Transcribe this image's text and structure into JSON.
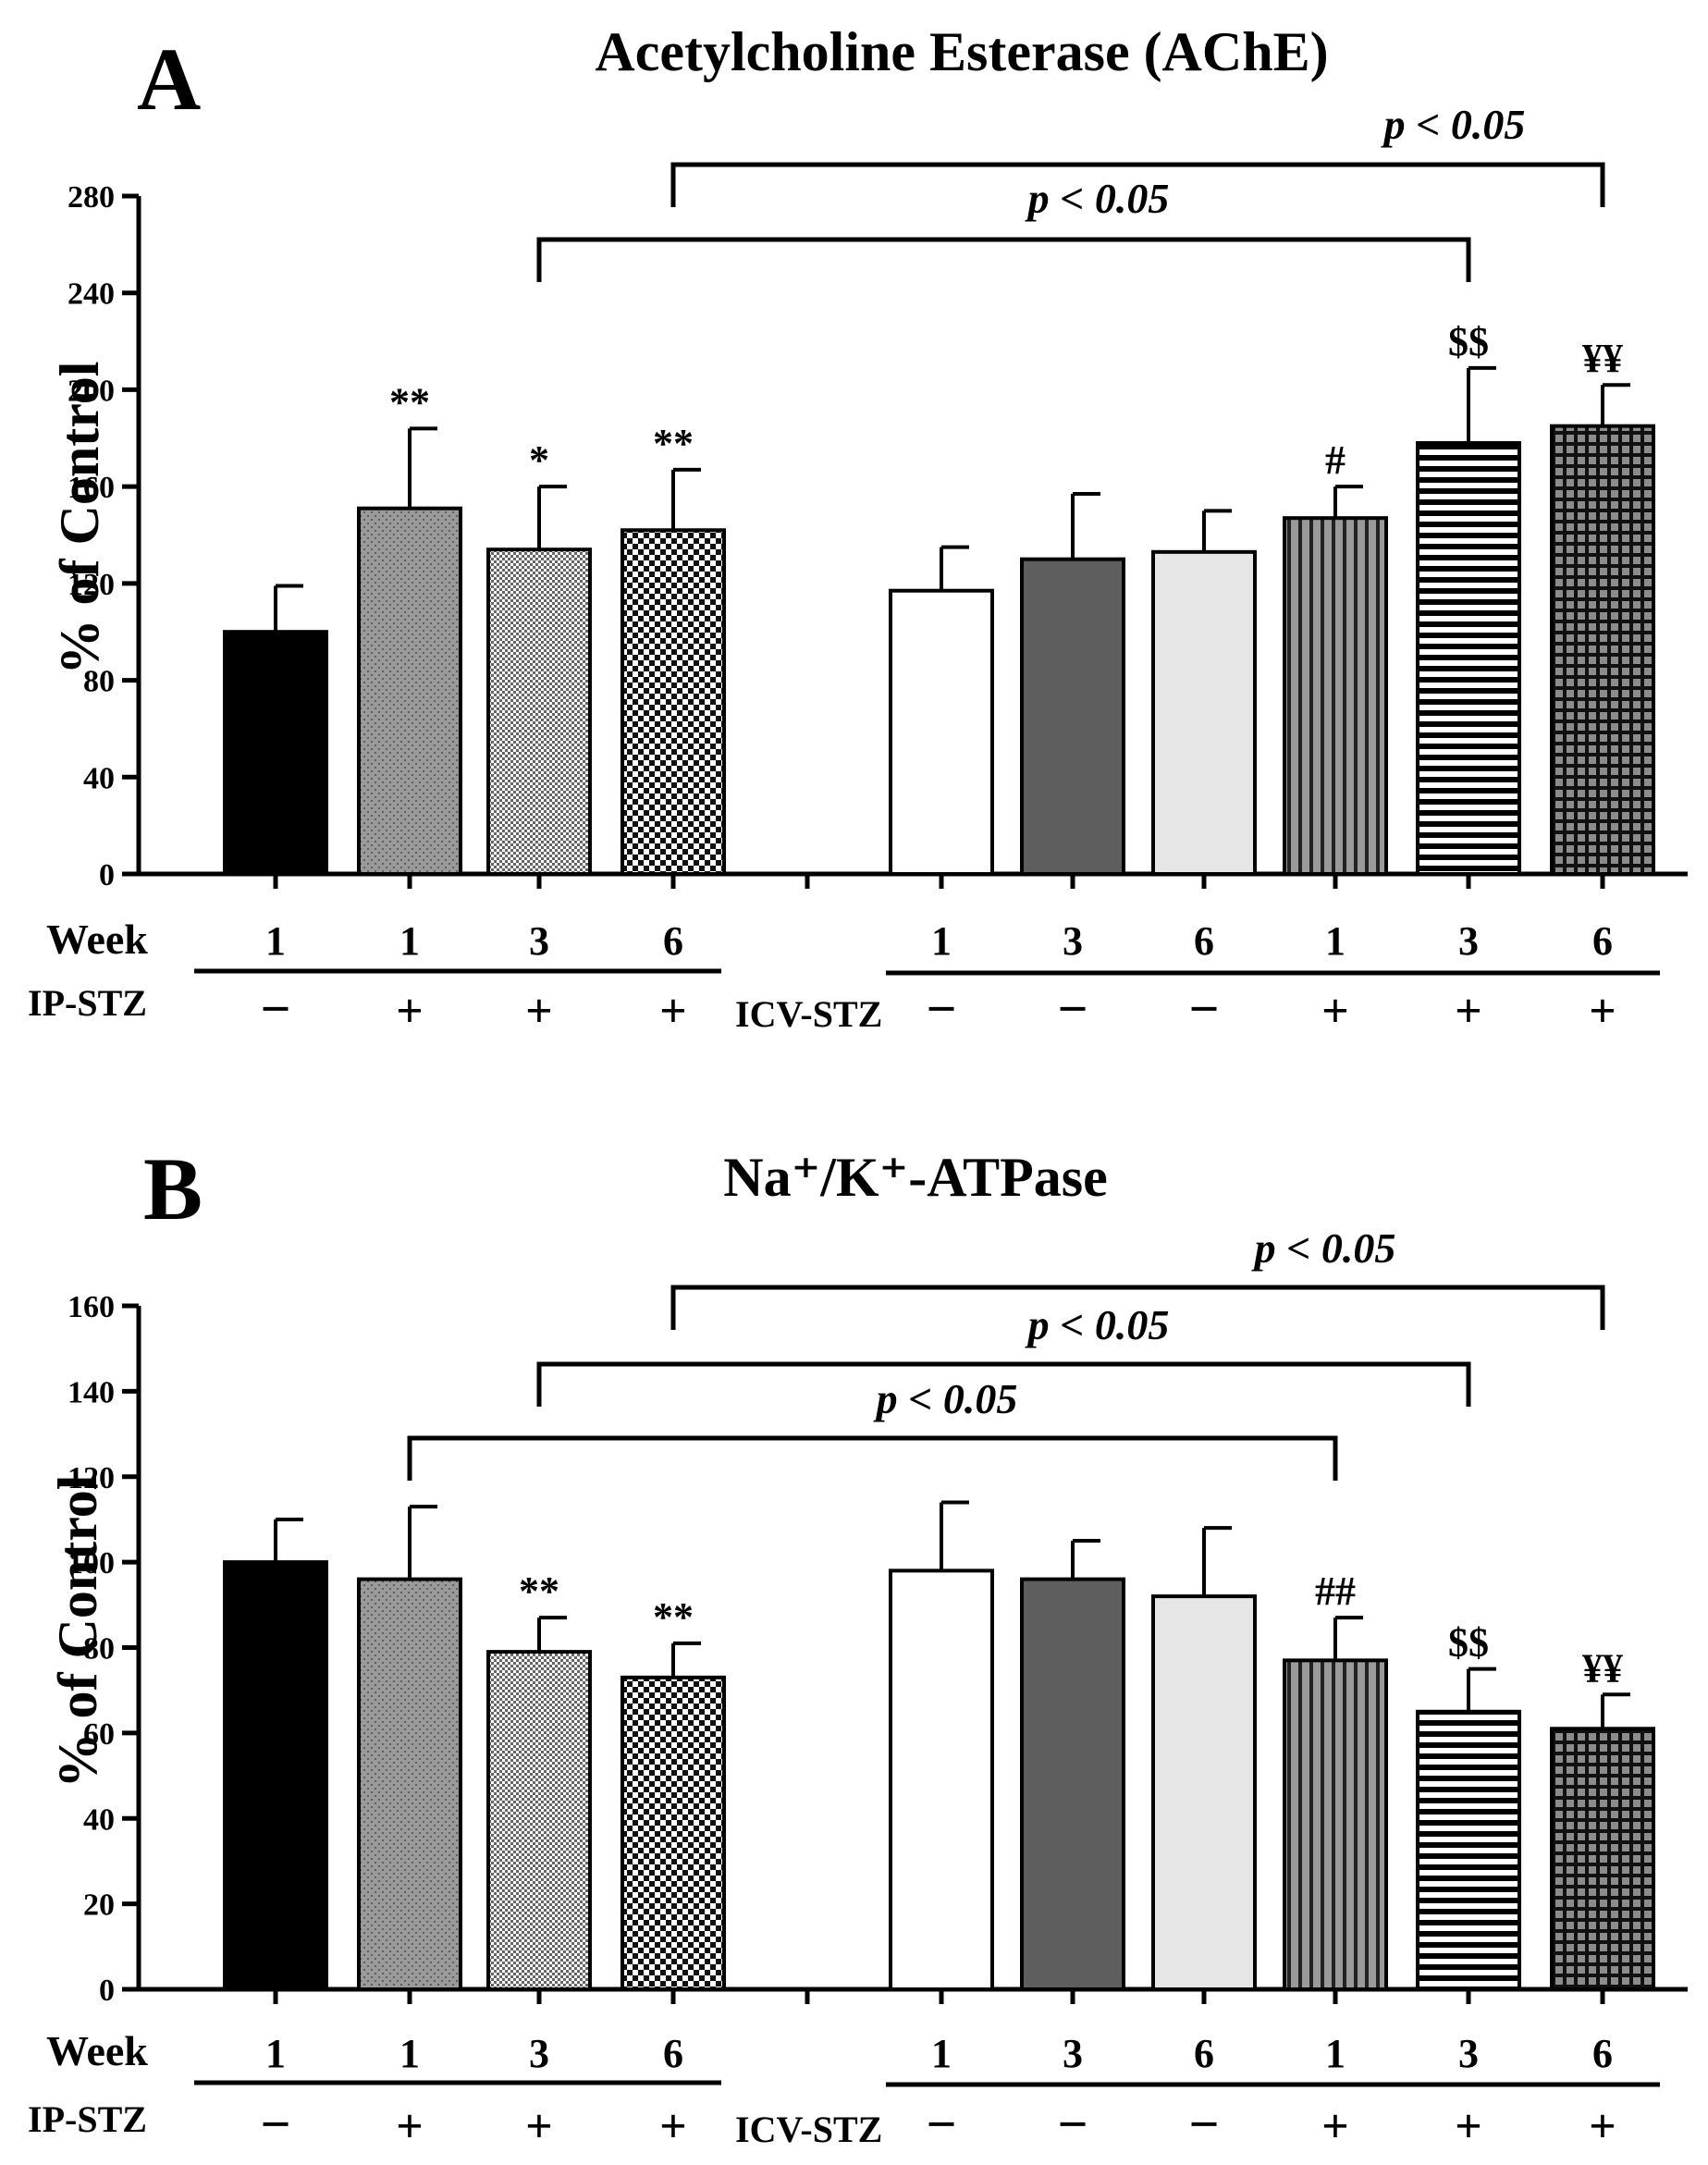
{
  "chart_data": [
    {
      "type": "bar",
      "panel_letter": "A",
      "title": "Acetylcholine Esterase (AChE)",
      "ylabel": "% of Control",
      "ylim": [
        0,
        280
      ],
      "yticks": [
        "0",
        "40",
        "80",
        "120",
        "160",
        "200",
        "240",
        "280"
      ],
      "row_labels": {
        "week": "Week",
        "ip": "IP-STZ",
        "icv": "ICV-STZ"
      },
      "groups": [
        {
          "week": "1",
          "stz": "-",
          "value": 100,
          "error": 19,
          "annotation": "",
          "pattern": "solid-black"
        },
        {
          "week": "1",
          "stz": "+",
          "value": 151,
          "error": 33,
          "annotation": "**",
          "pattern": "dots-gray"
        },
        {
          "week": "3",
          "stz": "+",
          "value": 134,
          "error": 26,
          "annotation": "*",
          "pattern": "fine-check"
        },
        {
          "week": "6",
          "stz": "+",
          "value": 142,
          "error": 25,
          "annotation": "**",
          "pattern": "coarse-check"
        },
        {
          "week": "1",
          "stz": "-",
          "value": 117,
          "error": 18,
          "annotation": "",
          "pattern": "white"
        },
        {
          "week": "3",
          "stz": "-",
          "value": 130,
          "error": 27,
          "annotation": "",
          "pattern": "dark-gray"
        },
        {
          "week": "6",
          "stz": "-",
          "value": 133,
          "error": 17,
          "annotation": "",
          "pattern": "light-gray"
        },
        {
          "week": "1",
          "stz": "+",
          "value": 147,
          "error": 13,
          "annotation": "#",
          "pattern": "vertical-stripes"
        },
        {
          "week": "3",
          "stz": "+",
          "value": 178,
          "error": 31,
          "annotation": "$$",
          "pattern": "horizontal-stripes"
        },
        {
          "week": "6",
          "stz": "+",
          "value": 185,
          "error": 17,
          "annotation": "¥¥",
          "pattern": "grid"
        }
      ],
      "comparisons": [
        {
          "from": 2,
          "to": 8,
          "label": "p < 0.05"
        },
        {
          "from": 3,
          "to": 9,
          "label": "p < 0.05"
        }
      ]
    },
    {
      "type": "bar",
      "panel_letter": "B",
      "title": "Na⁺/K⁺-ATPase",
      "ylabel": "% of Control",
      "ylim": [
        0,
        160
      ],
      "yticks": [
        "0",
        "20",
        "40",
        "60",
        "80",
        "100",
        "120",
        "140",
        "160"
      ],
      "row_labels": {
        "week": "Week",
        "ip": "IP-STZ",
        "icv": "ICV-STZ"
      },
      "groups": [
        {
          "week": "1",
          "stz": "-",
          "value": 100,
          "error": 10,
          "annotation": "",
          "pattern": "solid-black"
        },
        {
          "week": "1",
          "stz": "+",
          "value": 96,
          "error": 17,
          "annotation": "",
          "pattern": "dots-gray"
        },
        {
          "week": "3",
          "stz": "+",
          "value": 79,
          "error": 8,
          "annotation": "**",
          "pattern": "fine-check"
        },
        {
          "week": "6",
          "stz": "+",
          "value": 73,
          "error": 8,
          "annotation": "**",
          "pattern": "coarse-check"
        },
        {
          "week": "1",
          "stz": "-",
          "value": 98,
          "error": 16,
          "annotation": "",
          "pattern": "white"
        },
        {
          "week": "3",
          "stz": "-",
          "value": 96,
          "error": 9,
          "annotation": "",
          "pattern": "dark-gray"
        },
        {
          "week": "6",
          "stz": "-",
          "value": 92,
          "error": 16,
          "annotation": "",
          "pattern": "light-gray"
        },
        {
          "week": "1",
          "stz": "+",
          "value": 77,
          "error": 10,
          "annotation": "##",
          "pattern": "vertical-stripes"
        },
        {
          "week": "3",
          "stz": "+",
          "value": 65,
          "error": 10,
          "annotation": "$$",
          "pattern": "horizontal-stripes"
        },
        {
          "week": "6",
          "stz": "+",
          "value": 61,
          "error": 8,
          "annotation": "¥¥",
          "pattern": "grid"
        }
      ],
      "comparisons": [
        {
          "from": 1,
          "to": 7,
          "label": "p < 0.05"
        },
        {
          "from": 2,
          "to": 8,
          "label": "p < 0.05"
        },
        {
          "from": 3,
          "to": 9,
          "label": "p < 0.05"
        }
      ]
    }
  ]
}
